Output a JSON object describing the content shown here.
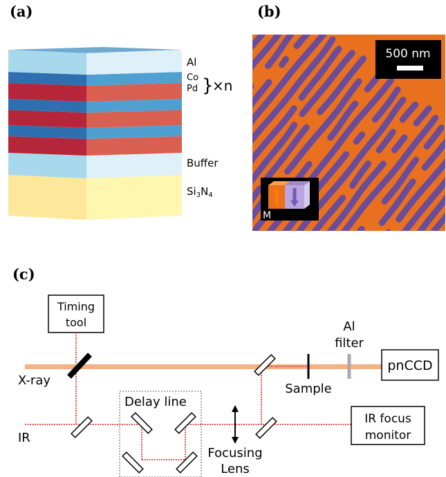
{
  "panels": {
    "a": "(a)",
    "b": "(b)",
    "c": "(c)"
  },
  "stack": {
    "al": "Al",
    "co": "Co",
    "pd": "Pd",
    "brace": "}",
    "times_n": "×n",
    "buffer": "Buffer",
    "substrate_main": "Si",
    "substrate_sub": "3",
    "substrate_n": "N",
    "substrate_sub2": "4"
  },
  "micrograph": {
    "scale_bar": "500 nm",
    "inset_label": "M"
  },
  "setup": {
    "timing_tool_line1": "Timing",
    "timing_tool_line2": "tool",
    "xray": "X-ray",
    "ir": "IR",
    "delay_line": "Delay line",
    "focusing_line1": "Focusing",
    "focusing_line2": "Lens",
    "sample": "Sample",
    "al_filter_line1": "Al",
    "al_filter_line2": "filter",
    "detector": "pnCCD",
    "monitor_line1": "IR focus",
    "monitor_line2": "monitor"
  },
  "colors": {
    "xray_beam": "#f4b183",
    "ir_beam": "#d9534f",
    "domain_orange": "#e8701f",
    "domain_purple": "#6b4c9a",
    "al_layer": "#9fd3ea",
    "co_layer": "#2e75b6",
    "pd_layer": "#b5263a",
    "substrate": "#fde79a"
  }
}
